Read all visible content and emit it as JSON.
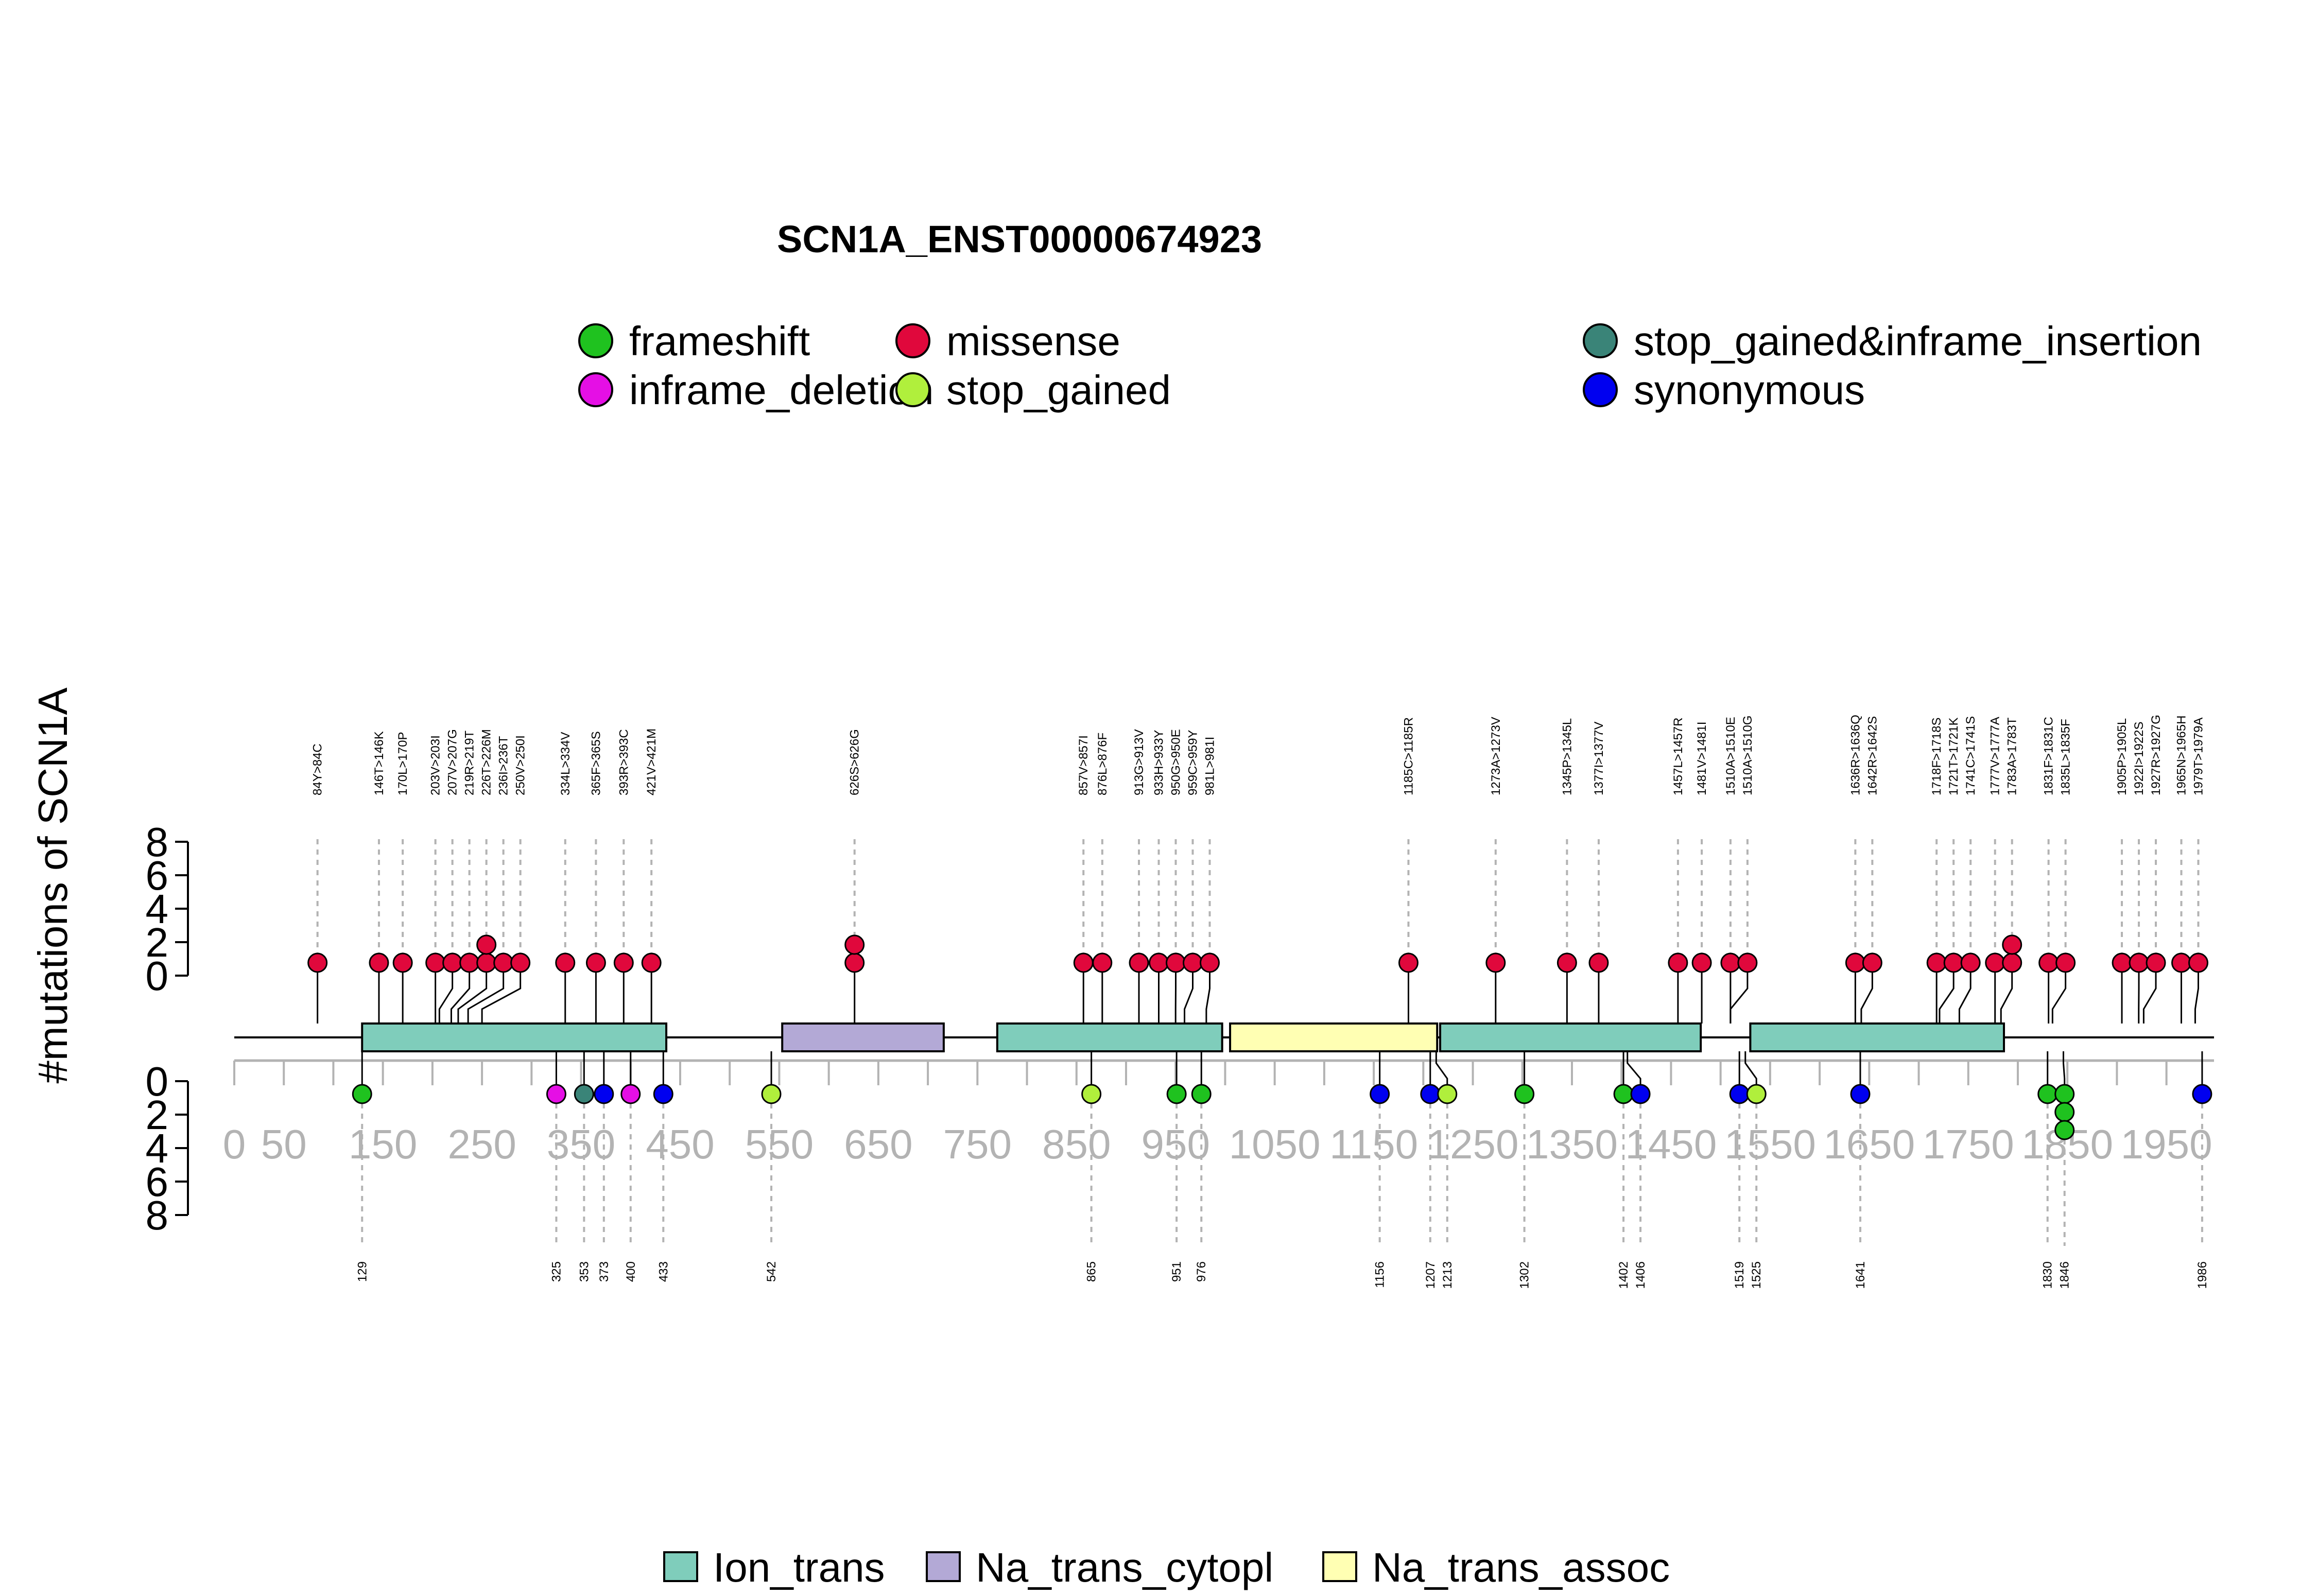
{
  "chart_data": {
    "type": "lollipop",
    "title": "SCN1A_ENST00000674923",
    "ylabel": "#mutations of SCN1A",
    "yticks": [
      "0",
      "2",
      "4",
      "6",
      "8"
    ],
    "ylim": [
      0,
      8
    ],
    "x_range": [
      0,
      1998
    ],
    "x_tick_labels": [
      {
        "value": 0,
        "label": "0"
      },
      {
        "value": 50,
        "label": "50"
      },
      {
        "value": 150,
        "label": "150"
      },
      {
        "value": 250,
        "label": "250"
      },
      {
        "value": 350,
        "label": "350"
      },
      {
        "value": 450,
        "label": "450"
      },
      {
        "value": 550,
        "label": "550"
      },
      {
        "value": 650,
        "label": "650"
      },
      {
        "value": 750,
        "label": "750"
      },
      {
        "value": 850,
        "label": "850"
      },
      {
        "value": 950,
        "label": "950"
      },
      {
        "value": 1050,
        "label": "1050"
      },
      {
        "value": 1150,
        "label": "1150"
      },
      {
        "value": 1250,
        "label": "1250"
      },
      {
        "value": 1350,
        "label": "1350"
      },
      {
        "value": 1450,
        "label": "1450"
      },
      {
        "value": 1550,
        "label": "1550"
      },
      {
        "value": 1650,
        "label": "1650"
      },
      {
        "value": 1750,
        "label": "1750"
      },
      {
        "value": 1850,
        "label": "1850"
      },
      {
        "value": 1950,
        "label": "1950"
      }
    ],
    "colors": {
      "frameshift": "#1fc21f",
      "inframe_deletion": "#e50fe5",
      "missense": "#e0083c",
      "stop_gained": "#b0ef3c",
      "stop_gained_inframe_insertion": "#3a8478",
      "synonymous": "#0000f0"
    },
    "legend": [
      {
        "label": "frameshift",
        "color": "#1fc21f"
      },
      {
        "label": "inframe_deletion",
        "color": "#e50fe5"
      },
      {
        "label": "missense",
        "color": "#e0083c"
      },
      {
        "label": "stop_gained",
        "color": "#b0ef3c"
      },
      {
        "label": "stop_gained&inframe_insertion",
        "color": "#3a8478"
      },
      {
        "label": "synonymous",
        "color": "#0000f0"
      }
    ],
    "domains": [
      {
        "name": "Ion_trans",
        "start": 129,
        "end": 436,
        "color": "#7fcdbb"
      },
      {
        "name": "Na_trans_cytopl",
        "start": 553,
        "end": 716,
        "color": "#b3a9d6"
      },
      {
        "name": "Ion_trans",
        "start": 770,
        "end": 997,
        "color": "#7fcdbb"
      },
      {
        "name": "Na_trans_assoc",
        "start": 1005,
        "end": 1214,
        "color": "#ffffb3"
      },
      {
        "name": "Ion_trans",
        "start": 1217,
        "end": 1480,
        "color": "#7fcdbb"
      },
      {
        "name": "Ion_trans",
        "start": 1530,
        "end": 1786,
        "color": "#7fcdbb"
      }
    ],
    "domain_legend": [
      {
        "label": "Ion_trans",
        "color": "#7fcdbb"
      },
      {
        "label": "Na_trans_cytopl",
        "color": "#b3a9d6"
      },
      {
        "label": "Na_trans_assoc",
        "color": "#ffffb3"
      }
    ],
    "top_mutations": [
      {
        "label": "84Y>84C",
        "pos": 84,
        "count": 1,
        "type": "missense"
      },
      {
        "label": "146T>146K",
        "pos": 146,
        "count": 1,
        "type": "missense"
      },
      {
        "label": "170L>170P",
        "pos": 170,
        "count": 1,
        "type": "missense"
      },
      {
        "label": "203V>203I",
        "pos": 203,
        "count": 1,
        "type": "missense"
      },
      {
        "label": "207V>207G",
        "pos": 207,
        "count": 1,
        "type": "missense"
      },
      {
        "label": "219R>219T",
        "pos": 219,
        "count": 1,
        "type": "missense"
      },
      {
        "label": "226T>226M",
        "pos": 226,
        "count": 2,
        "type": "missense"
      },
      {
        "label": "236I>236T",
        "pos": 236,
        "count": 1,
        "type": "missense"
      },
      {
        "label": "250V>250I",
        "pos": 250,
        "count": 1,
        "type": "missense"
      },
      {
        "label": "334L>334V",
        "pos": 334,
        "count": 1,
        "type": "missense"
      },
      {
        "label": "365F>365S",
        "pos": 365,
        "count": 1,
        "type": "missense"
      },
      {
        "label": "393R>393C",
        "pos": 393,
        "count": 1,
        "type": "missense"
      },
      {
        "label": "421V>421M",
        "pos": 421,
        "count": 1,
        "type": "missense"
      },
      {
        "label": "626S>626G",
        "pos": 626,
        "count": 2,
        "type": "missense"
      },
      {
        "label": "857V>857I",
        "pos": 857,
        "count": 1,
        "type": "missense"
      },
      {
        "label": "876L>876F",
        "pos": 876,
        "count": 1,
        "type": "missense"
      },
      {
        "label": "913G>913V",
        "pos": 913,
        "count": 1,
        "type": "missense"
      },
      {
        "label": "933H>933Y",
        "pos": 933,
        "count": 1,
        "type": "missense"
      },
      {
        "label": "950G>950E",
        "pos": 950,
        "count": 1,
        "type": "missense"
      },
      {
        "label": "959C>959Y",
        "pos": 959,
        "count": 1,
        "type": "missense"
      },
      {
        "label": "981L>981I",
        "pos": 981,
        "count": 1,
        "type": "missense"
      },
      {
        "label": "1185C>1185R",
        "pos": 1185,
        "count": 1,
        "type": "missense"
      },
      {
        "label": "1273A>1273V",
        "pos": 1273,
        "count": 1,
        "type": "missense"
      },
      {
        "label": "1345P>1345L",
        "pos": 1345,
        "count": 1,
        "type": "missense"
      },
      {
        "label": "1377I>1377V",
        "pos": 1377,
        "count": 1,
        "type": "missense"
      },
      {
        "label": "1457L>1457R",
        "pos": 1457,
        "count": 1,
        "type": "missense"
      },
      {
        "label": "1481V>1481I",
        "pos": 1481,
        "count": 1,
        "type": "missense"
      },
      {
        "label": "1510A>1510E",
        "pos": 1510,
        "count": 1,
        "type": "missense"
      },
      {
        "label": "1510A>1510G",
        "pos": 1510,
        "count": 1,
        "type": "missense"
      },
      {
        "label": "1636R>1636Q",
        "pos": 1636,
        "count": 1,
        "type": "missense"
      },
      {
        "label": "1642R>1642S",
        "pos": 1642,
        "count": 1,
        "type": "missense"
      },
      {
        "label": "1718F>1718S",
        "pos": 1718,
        "count": 1,
        "type": "missense"
      },
      {
        "label": "1721T>1721K",
        "pos": 1721,
        "count": 1,
        "type": "missense"
      },
      {
        "label": "1741C>1741S",
        "pos": 1741,
        "count": 1,
        "type": "missense"
      },
      {
        "label": "1777V>1777A",
        "pos": 1777,
        "count": 1,
        "type": "missense"
      },
      {
        "label": "1783A>1783T",
        "pos": 1783,
        "count": 2,
        "type": "missense"
      },
      {
        "label": "1831F>1831C",
        "pos": 1831,
        "count": 1,
        "type": "missense"
      },
      {
        "label": "1835L>1835F",
        "pos": 1835,
        "count": 1,
        "type": "missense"
      },
      {
        "label": "1905P>1905L",
        "pos": 1905,
        "count": 1,
        "type": "missense"
      },
      {
        "label": "1922I>1922S",
        "pos": 1922,
        "count": 1,
        "type": "missense"
      },
      {
        "label": "1927R>1927G",
        "pos": 1927,
        "count": 1,
        "type": "missense"
      },
      {
        "label": "1965N>1965H",
        "pos": 1965,
        "count": 1,
        "type": "missense"
      },
      {
        "label": "1979T>1979A",
        "pos": 1979,
        "count": 1,
        "type": "missense"
      }
    ],
    "bottom_mutations": [
      {
        "label": "129",
        "pos": 129,
        "count": 1,
        "type": "frameshift"
      },
      {
        "label": "325",
        "pos": 325,
        "count": 1,
        "type": "inframe_deletion"
      },
      {
        "label": "353",
        "pos": 353,
        "count": 1,
        "type": "stop_gained_inframe_insertion"
      },
      {
        "label": "373",
        "pos": 373,
        "count": 1,
        "type": "synonymous"
      },
      {
        "label": "400",
        "pos": 400,
        "count": 1,
        "type": "inframe_deletion"
      },
      {
        "label": "433",
        "pos": 433,
        "count": 1,
        "type": "synonymous"
      },
      {
        "label": "542",
        "pos": 542,
        "count": 1,
        "type": "stop_gained"
      },
      {
        "label": "865",
        "pos": 865,
        "count": 1,
        "type": "stop_gained"
      },
      {
        "label": "951",
        "pos": 951,
        "count": 1,
        "type": "frameshift"
      },
      {
        "label": "976",
        "pos": 976,
        "count": 1,
        "type": "frameshift"
      },
      {
        "label": "1156",
        "pos": 1156,
        "count": 1,
        "type": "synonymous"
      },
      {
        "label": "1207",
        "pos": 1207,
        "count": 1,
        "type": "synonymous"
      },
      {
        "label": "1213",
        "pos": 1213,
        "count": 1,
        "type": "stop_gained"
      },
      {
        "label": "1302",
        "pos": 1302,
        "count": 1,
        "type": "frameshift"
      },
      {
        "label": "1402",
        "pos": 1402,
        "count": 1,
        "type": "frameshift"
      },
      {
        "label": "1406",
        "pos": 1406,
        "count": 1,
        "type": "synonymous"
      },
      {
        "label": "1519",
        "pos": 1519,
        "count": 1,
        "type": "synonymous"
      },
      {
        "label": "1525",
        "pos": 1525,
        "count": 1,
        "type": "stop_gained"
      },
      {
        "label": "1641",
        "pos": 1641,
        "count": 1,
        "type": "synonymous"
      },
      {
        "label": "1830",
        "pos": 1830,
        "count": 1,
        "type": "frameshift"
      },
      {
        "label": "1846",
        "pos": 1846,
        "count": 3,
        "type": "frameshift"
      },
      {
        "label": "1986",
        "pos": 1986,
        "count": 1,
        "type": "synonymous"
      }
    ]
  }
}
